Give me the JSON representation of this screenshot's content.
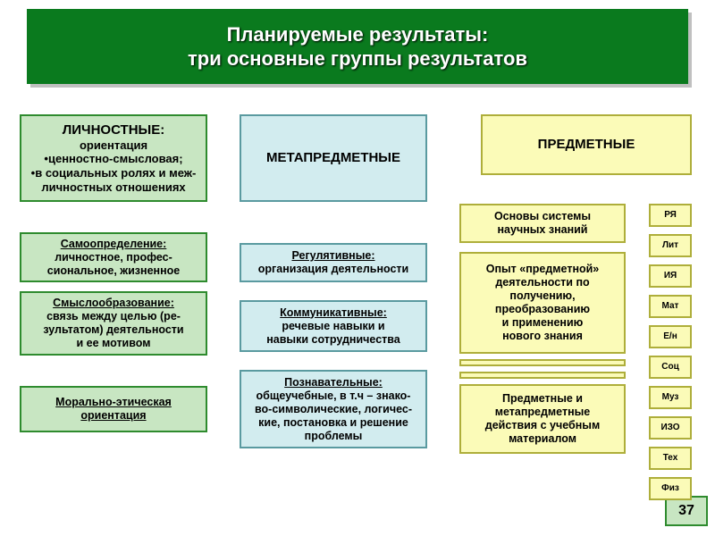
{
  "title": {
    "line1": "Планируемые результаты:",
    "line2": "три основные группы результатов",
    "bg": "#0a7a1e",
    "fg": "#ffffff"
  },
  "colors": {
    "green_fill": "#c8e6c2",
    "green_border": "#2e8b2e",
    "cyan_fill": "#d2ecef",
    "cyan_border": "#5a9aa0",
    "yellow_fill": "#fbfbb8",
    "yellow_border": "#aeae3a",
    "text": "#000000"
  },
  "col1": {
    "header": {
      "title": "ЛИЧНОСТНЫЕ:",
      "lines": [
        "ориентация",
        "•ценностно-смысловая;",
        "•в социальных ролях и меж-",
        "личностных отношениях"
      ]
    },
    "b1": {
      "title": "Самоопределение:",
      "lines": [
        "личностное, профес-",
        "сиональное, жизненное"
      ]
    },
    "b2": {
      "title": "Смыслообразование:",
      "lines": [
        "связь между целью (ре-",
        "зультатом) деятельности",
        "и ее мотивом"
      ]
    },
    "b3": {
      "title": "Морально-этическая",
      "title2": "ориентация"
    }
  },
  "col2": {
    "header": "МЕТАПРЕДМЕТНЫЕ",
    "b1": {
      "title": "Регулятивные:",
      "lines": [
        "организация деятельности"
      ]
    },
    "b2": {
      "title": "Коммуникативные:",
      "lines": [
        "речевые навыки и",
        "навыки сотрудничества"
      ]
    },
    "b3": {
      "title": "Познавательные:",
      "lines": [
        "общеучебные, в т.ч – знако-",
        "во-символические, логичес-",
        "кие, постановка и решение",
        "проблемы"
      ]
    }
  },
  "col3": {
    "header": "ПРЕДМЕТНЫЕ",
    "b1": [
      "Основы системы",
      "научных знаний"
    ],
    "b2": [
      "Опыт «предметной»",
      "деятельности по",
      "получению,",
      "преобразованию",
      "и применению",
      "нового знания"
    ],
    "b3": [
      "Предметные и",
      "метапредметные",
      "действия с учебным",
      "материалом"
    ],
    "subjects": [
      "РЯ",
      "Лит",
      "ИЯ",
      "Мат",
      "Е/н",
      "Соц",
      "Муз",
      "ИЗО",
      "Тех",
      "Физ"
    ]
  },
  "page": "37"
}
